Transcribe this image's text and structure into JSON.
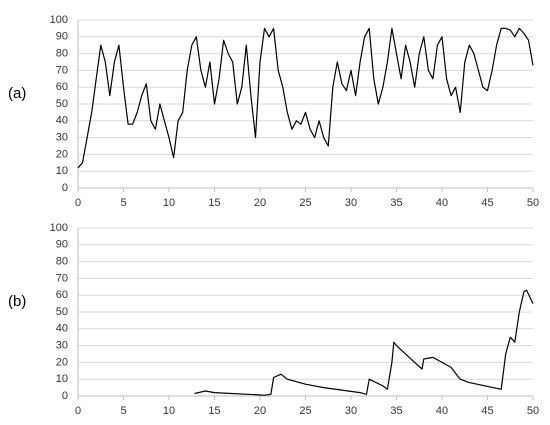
{
  "chart_data": [
    {
      "type": "line",
      "label": "(a)",
      "color": "#000000",
      "grid": true,
      "xlim": [
        0,
        50
      ],
      "xticks": [
        0,
        5,
        10,
        15,
        20,
        25,
        30,
        35,
        40,
        45,
        50
      ],
      "ylim": [
        0,
        100
      ],
      "yticks": [
        0,
        10,
        20,
        30,
        40,
        50,
        60,
        70,
        80,
        90,
        100
      ],
      "x": [
        0,
        0.5,
        1,
        1.5,
        2,
        2.5,
        3,
        3.5,
        4,
        4.5,
        5,
        5.5,
        6,
        6.5,
        7,
        7.5,
        8,
        8.5,
        9,
        9.5,
        10,
        10.5,
        11,
        11.5,
        12,
        12.5,
        13,
        13.5,
        14,
        14.5,
        15,
        15.5,
        16,
        16.5,
        17,
        17.5,
        18,
        18.5,
        19,
        19.5,
        20,
        20.5,
        21,
        21.5,
        22,
        22.5,
        23,
        23.5,
        24,
        24.5,
        25,
        25.5,
        26,
        26.5,
        27,
        27.5,
        28,
        28.5,
        29,
        29.5,
        30,
        30.5,
        31,
        31.5,
        32,
        32.5,
        33,
        33.5,
        34,
        34.5,
        35,
        35.5,
        36,
        36.5,
        37,
        37.5,
        38,
        38.5,
        39,
        39.5,
        40,
        40.5,
        41,
        41.5,
        42,
        42.5,
        43,
        43.5,
        44,
        44.5,
        45,
        45.5,
        46,
        46.5,
        47,
        47.5,
        48,
        48.5,
        49,
        49.5,
        50
      ],
      "values": [
        12,
        15,
        30,
        45,
        65,
        85,
        75,
        55,
        75,
        85,
        60,
        38,
        38,
        45,
        55,
        62,
        40,
        35,
        50,
        40,
        30,
        18,
        40,
        45,
        70,
        85,
        90,
        70,
        60,
        75,
        50,
        65,
        88,
        80,
        75,
        50,
        60,
        85,
        55,
        30,
        75,
        95,
        90,
        95,
        70,
        60,
        45,
        35,
        40,
        38,
        45,
        35,
        30,
        40,
        30,
        25,
        60,
        75,
        62,
        58,
        70,
        55,
        75,
        90,
        95,
        65,
        50,
        60,
        75,
        95,
        80,
        65,
        85,
        75,
        60,
        80,
        90,
        70,
        65,
        85,
        90,
        65,
        55,
        60,
        45,
        75,
        85,
        80,
        70,
        60,
        58,
        70,
        85,
        95,
        95,
        94,
        90,
        95,
        92,
        88,
        73
      ]
    },
    {
      "type": "line",
      "label": "(b)",
      "color": "#000000",
      "grid": true,
      "xlim": [
        0,
        50
      ],
      "xticks": [
        0,
        5,
        10,
        15,
        20,
        25,
        30,
        35,
        40,
        45,
        50
      ],
      "ylim": [
        0,
        100
      ],
      "yticks": [
        0,
        10,
        20,
        30,
        40,
        50,
        60,
        70,
        80,
        90,
        100
      ],
      "x": [
        12.8,
        14,
        15,
        20.5,
        21.2,
        21.5,
        22.3,
        23,
        25,
        27,
        31,
        31.7,
        32,
        33.5,
        34,
        34.5,
        34.7,
        35,
        37,
        37.8,
        38,
        39,
        41,
        42,
        43,
        46.5,
        47,
        47.5,
        48,
        48.5,
        49,
        49.3,
        50
      ],
      "values": [
        1.5,
        3,
        2,
        0.5,
        1,
        11,
        13,
        10,
        7,
        5,
        2,
        1,
        10,
        6,
        4,
        20,
        32,
        30,
        20,
        16,
        22,
        23,
        17,
        10,
        8,
        4,
        25,
        35,
        32,
        50,
        62,
        63,
        55
      ]
    }
  ]
}
